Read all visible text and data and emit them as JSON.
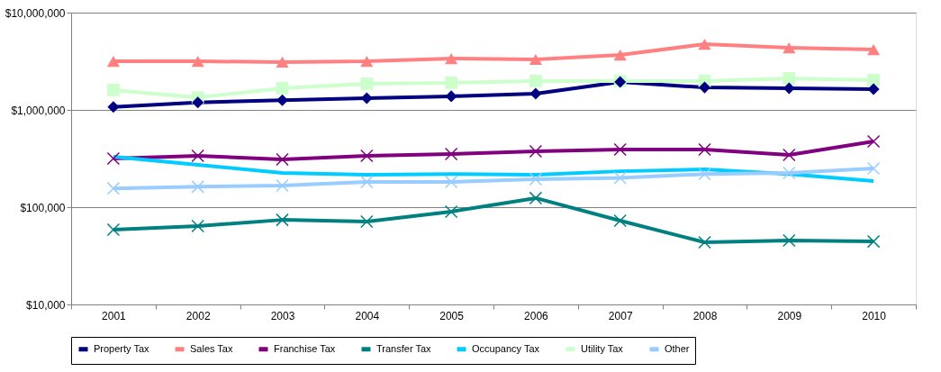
{
  "chart_data": {
    "type": "line",
    "categories": [
      "2001",
      "2002",
      "2003",
      "2004",
      "2005",
      "2006",
      "2007",
      "2008",
      "2009",
      "2010"
    ],
    "series": [
      {
        "name": "Property Tax",
        "color": "#000080",
        "marker": "diamond",
        "values": [
          1070000,
          1190000,
          1260000,
          1320000,
          1380000,
          1470000,
          1940000,
          1700000,
          1670000,
          1630000
        ]
      },
      {
        "name": "Sales Tax",
        "color": "#ff8080",
        "marker": "triangle",
        "values": [
          3160000,
          3160000,
          3100000,
          3160000,
          3370000,
          3300000,
          3670000,
          4740000,
          4350000,
          4170000
        ]
      },
      {
        "name": "Franchise Tax",
        "color": "#800080",
        "marker": "cross",
        "values": [
          316000,
          337000,
          310000,
          337000,
          352000,
          375000,
          392000,
          392000,
          344000,
          474000
        ]
      },
      {
        "name": "Transfer Tax",
        "color": "#008080",
        "marker": "cross",
        "values": [
          58700,
          64000,
          74000,
          71000,
          90000,
          124000,
          72600,
          43500,
          45400,
          44400
        ]
      },
      {
        "name": "Occupancy Tax",
        "color": "#00ccff",
        "marker": "none",
        "values": [
          330000,
          272000,
          225000,
          215000,
          219000,
          215000,
          234000,
          245000,
          219000,
          186000
        ]
      },
      {
        "name": "Utility Tax",
        "color": "#ccffcc",
        "marker": "square",
        "values": [
          1600000,
          1340000,
          1670000,
          1860000,
          1900000,
          1980000,
          1980000,
          1980000,
          2110000,
          2020000
        ]
      },
      {
        "name": "Other",
        "color": "#99ccff",
        "marker": "cross",
        "values": [
          156000,
          162000,
          167000,
          182000,
          182000,
          194000,
          200000,
          219000,
          225000,
          250000
        ]
      }
    ],
    "log": true,
    "ylim": [
      10000,
      10000000
    ],
    "yticks": [
      {
        "value": 10000,
        "label": "$10,000"
      },
      {
        "value": 100000,
        "label": "$100,000"
      },
      {
        "value": 1000000,
        "label": "$1,000,000"
      },
      {
        "value": 10000000,
        "label": "$10,000,000"
      }
    ],
    "grid": "y",
    "legend": "bottom"
  }
}
